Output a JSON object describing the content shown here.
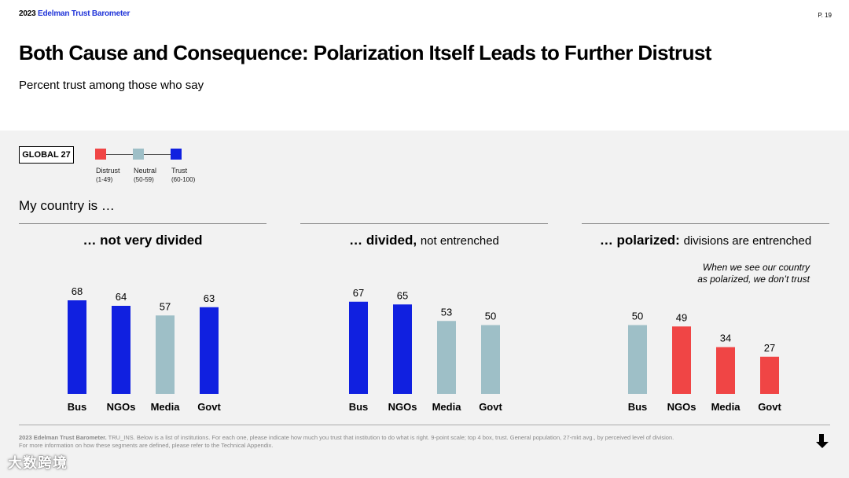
{
  "header": {
    "brand_year": "2023",
    "brand_name": "Edelman Trust Barometer",
    "page": "P. 19",
    "title": "Both Cause and Consequence: Polarization Itself Leads to Further Distrust",
    "subtitle": "Percent trust among those who say"
  },
  "global_label": "GLOBAL 27",
  "legend": [
    {
      "label": "Distrust",
      "range": "(1-49)",
      "color": "#f04545"
    },
    {
      "label": "Neutral",
      "range": "(50-59)",
      "color": "#9ebfc7"
    },
    {
      "label": "Trust",
      "range": "(60-100)",
      "color": "#1020e0"
    }
  ],
  "section_label": "My country is …",
  "groups": [
    {
      "title_bold": "… not very divided",
      "title_light": ""
    },
    {
      "title_bold": "… divided,",
      "title_light": "not entrenched"
    },
    {
      "title_bold": "… polarized:",
      "title_light": "divisions are entrenched"
    }
  ],
  "note_line1": "When we see our country",
  "note_line2": "as polarized, we don’t trust",
  "chart_data": [
    {
      "type": "bar",
      "title": "… not very divided",
      "categories": [
        "Bus",
        "NGOs",
        "Media",
        "Govt"
      ],
      "values": [
        68,
        64,
        57,
        63
      ],
      "ylim": [
        0,
        100
      ]
    },
    {
      "type": "bar",
      "title": "… divided, not entrenched",
      "categories": [
        "Bus",
        "NGOs",
        "Media",
        "Govt"
      ],
      "values": [
        67,
        65,
        53,
        50
      ],
      "ylim": [
        0,
        100
      ]
    },
    {
      "type": "bar",
      "title": "… polarized: divisions are entrenched",
      "categories": [
        "Bus",
        "NGOs",
        "Media",
        "Govt"
      ],
      "values": [
        50,
        49,
        34,
        27
      ],
      "ylim": [
        0,
        100
      ]
    }
  ],
  "footnote_bold": "2023 Edelman Trust Barometer.",
  "footnote_text": " TRU_INS. Below is a list of institutions. For each one, please indicate how much you trust that institution to do what is right. 9-point scale; top 4 box, trust. General population, 27-mkt avg., by perceived level of division.",
  "footnote_line2": "For more information on how these segments are defined, please refer to the Technical Appendix.",
  "watermark": "大数跨境"
}
